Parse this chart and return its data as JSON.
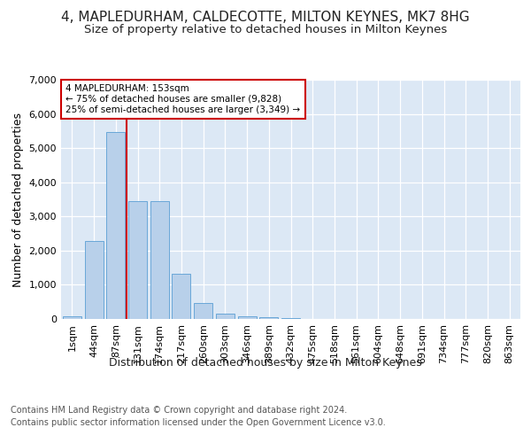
{
  "title": "4, MAPLEDURHAM, CALDECOTTE, MILTON KEYNES, MK7 8HG",
  "subtitle": "Size of property relative to detached houses in Milton Keynes",
  "xlabel": "Distribution of detached houses by size in Milton Keynes",
  "ylabel": "Number of detached properties",
  "footer_line1": "Contains HM Land Registry data © Crown copyright and database right 2024.",
  "footer_line2": "Contains public sector information licensed under the Open Government Licence v3.0.",
  "categories": [
    "1sqm",
    "44sqm",
    "87sqm",
    "131sqm",
    "174sqm",
    "217sqm",
    "260sqm",
    "303sqm",
    "346sqm",
    "389sqm",
    "432sqm",
    "475sqm",
    "518sqm",
    "561sqm",
    "604sqm",
    "648sqm",
    "691sqm",
    "734sqm",
    "777sqm",
    "820sqm",
    "863sqm"
  ],
  "bar_values": [
    80,
    2280,
    5470,
    3440,
    3440,
    1310,
    460,
    155,
    90,
    55,
    35,
    0,
    0,
    0,
    0,
    0,
    0,
    0,
    0,
    0,
    0
  ],
  "bar_color": "#b8d0ea",
  "bar_edgecolor": "#5a9fd4",
  "vline_x": 2.5,
  "vline_color": "#cc0000",
  "annotation_text": "4 MAPLEDURHAM: 153sqm\n← 75% of detached houses are smaller (9,828)\n25% of semi-detached houses are larger (3,349) →",
  "annotation_box_color": "#ffffff",
  "annotation_box_edgecolor": "#cc0000",
  "ylim": [
    0,
    7000
  ],
  "yticks": [
    0,
    1000,
    2000,
    3000,
    4000,
    5000,
    6000,
    7000
  ],
  "fig_bg_color": "#ffffff",
  "plot_bg_color": "#dce8f5",
  "title_fontsize": 11,
  "subtitle_fontsize": 9.5,
  "axis_label_fontsize": 9,
  "tick_fontsize": 8,
  "footer_fontsize": 7
}
